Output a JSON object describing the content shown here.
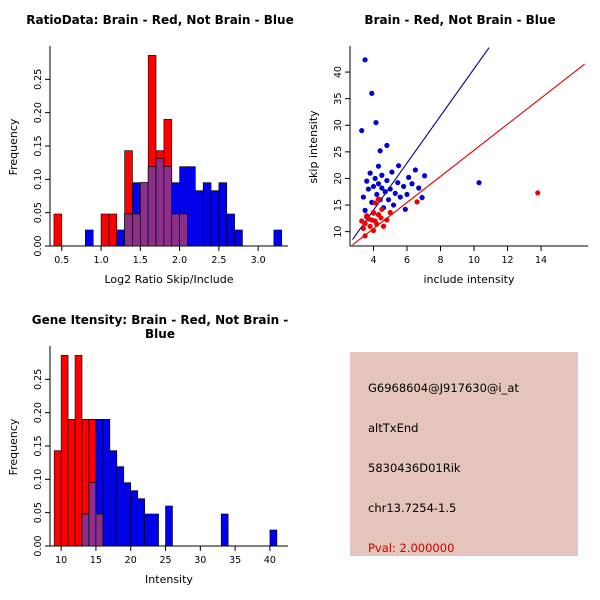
{
  "chart_data": [
    {
      "id": "ratio-histogram",
      "type": "histogram",
      "title": "RatioData: Brain - Red, Not Brain - Blue",
      "xlabel": "Log2 Ratio Skip/Include",
      "ylabel": "Frequency",
      "legend": [
        {
          "name": "Brain",
          "color_key": "red"
        },
        {
          "name": "Not Brain",
          "color_key": "blue"
        }
      ],
      "bin_start": 0.4,
      "bin_width": 0.1,
      "red": [
        0.048,
        0,
        0,
        0,
        0,
        0,
        0.048,
        0.048,
        0,
        0.143,
        0.048,
        0.095,
        0.286,
        0.143,
        0.19,
        0.048,
        0.048,
        0,
        0,
        0,
        0,
        0,
        0,
        0,
        0,
        0,
        0,
        0,
        0
      ],
      "blue": [
        0,
        0,
        0,
        0,
        0.024,
        0,
        0,
        0,
        0.024,
        0.048,
        0.095,
        0.095,
        0.119,
        0.131,
        0.119,
        0.095,
        0.119,
        0.119,
        0.083,
        0.095,
        0.083,
        0.095,
        0.048,
        0.024,
        0,
        0,
        0,
        0,
        0.024
      ],
      "x_range": [
        0.35,
        3.38
      ],
      "y_range": [
        0,
        0.3
      ],
      "x_ticks": [
        0.5,
        1.0,
        1.5,
        2.0,
        2.5,
        3.0
      ],
      "x_tick_labels": [
        "0.5",
        "1.0",
        "1.5",
        "2.0",
        "2.5",
        "3.0"
      ],
      "y_ticks": [
        0,
        0.05,
        0.1,
        0.15,
        0.2,
        0.25
      ],
      "y_tick_labels": [
        "0.00",
        "0.05",
        "0.10",
        "0.15",
        "0.20",
        "0.25"
      ],
      "color_red": "#ff0000",
      "color_blue": "#0000ee",
      "color_overlap": "#8b2f8b"
    },
    {
      "id": "intensity-scatter",
      "type": "scatter",
      "title": "Brain - Red, Not Brain - Blue",
      "xlabel": "include intensity",
      "ylabel": "skip intensity",
      "x_range": [
        2.6,
        16.8
      ],
      "y_range": [
        7.3,
        44.9
      ],
      "x_ticks": [
        4,
        6,
        8,
        10,
        12,
        14
      ],
      "x_tick_labels": [
        "4",
        "6",
        "8",
        "10",
        "12",
        "14"
      ],
      "y_ticks": [
        10,
        15,
        20,
        25,
        30,
        35,
        40
      ],
      "y_tick_labels": [
        "10",
        "15",
        "20",
        "25",
        "30",
        "35",
        "40"
      ],
      "series": [
        {
          "name": "Not Brain",
          "color": "#0000cd",
          "points": [
            [
              3.3,
              29
            ],
            [
              3.5,
              42.3
            ],
            [
              3.9,
              36
            ],
            [
              4.15,
              30.5
            ],
            [
              4.4,
              25.2
            ],
            [
              3.4,
              16.5
            ],
            [
              3.5,
              14
            ],
            [
              3.6,
              19.5
            ],
            [
              3.7,
              18
            ],
            [
              3.8,
              21
            ],
            [
              3.9,
              15.5
            ],
            [
              4.0,
              18.5
            ],
            [
              4.0,
              13.5
            ],
            [
              4.1,
              20
            ],
            [
              4.2,
              17
            ],
            [
              4.3,
              19
            ],
            [
              4.3,
              22.3
            ],
            [
              4.4,
              16
            ],
            [
              4.5,
              18.2
            ],
            [
              4.5,
              20.6
            ],
            [
              4.6,
              14.5
            ],
            [
              4.7,
              17.5
            ],
            [
              4.8,
              19.6
            ],
            [
              4.9,
              16
            ],
            [
              5.0,
              18
            ],
            [
              5.1,
              21.2
            ],
            [
              5.2,
              15
            ],
            [
              5.3,
              17.2
            ],
            [
              5.45,
              19.2
            ],
            [
              5.5,
              22.4
            ],
            [
              5.6,
              16.5
            ],
            [
              5.8,
              18.5
            ],
            [
              6.0,
              17
            ],
            [
              6.1,
              20.2
            ],
            [
              6.3,
              19
            ],
            [
              6.5,
              21.6
            ],
            [
              6.7,
              18.2
            ],
            [
              7.05,
              20.5
            ],
            [
              5.9,
              14.2
            ],
            [
              4.8,
              26.2
            ],
            [
              10.3,
              19.2
            ],
            [
              3.6,
              12.8
            ],
            [
              6.9,
              16.4
            ]
          ]
        },
        {
          "name": "Brain",
          "color": "#ee0000",
          "points": [
            [
              3.3,
              12
            ],
            [
              3.4,
              10.6
            ],
            [
              3.5,
              11.5
            ],
            [
              3.6,
              13
            ],
            [
              3.7,
              12.4
            ],
            [
              3.8,
              11
            ],
            [
              3.9,
              12.2
            ],
            [
              4.0,
              10.2
            ],
            [
              4.0,
              13.6
            ],
            [
              4.1,
              12
            ],
            [
              4.2,
              11.4
            ],
            [
              4.3,
              13.2
            ],
            [
              4.45,
              12.6
            ],
            [
              4.5,
              14.2
            ],
            [
              4.6,
              11
            ],
            [
              4.8,
              12.2
            ],
            [
              5.0,
              13.6
            ],
            [
              3.5,
              9.2
            ],
            [
              4.1,
              15.4
            ],
            [
              4.3,
              16.1
            ],
            [
              6.6,
              15.6
            ],
            [
              13.8,
              17.3
            ]
          ]
        }
      ],
      "lines": [
        {
          "name": "brain-fit-line",
          "color": "#dd0000",
          "x1": 2.75,
          "y1": 7.5,
          "x2": 16.6,
          "y2": 41.5
        },
        {
          "name": "notbrain-fit-line",
          "color": "#00008b",
          "x1": 2.75,
          "y1": 8.5,
          "x2": 10.9,
          "y2": 44.6
        }
      ]
    },
    {
      "id": "gene-intensity-histogram",
      "type": "histogram",
      "title": "Gene Itensity: Brain - Red, Not Brain - Blue",
      "xlabel": "Intensity",
      "ylabel": "Frequency",
      "legend": [
        {
          "name": "Brain",
          "color_key": "red"
        },
        {
          "name": "Not Brain",
          "color_key": "blue"
        }
      ],
      "bin_start": 9,
      "bin_width": 1,
      "red": [
        0.143,
        0.286,
        0.19,
        0.286,
        0.19,
        0.19,
        0.048,
        0,
        0,
        0,
        0,
        0,
        0,
        0,
        0,
        0,
        0,
        0,
        0,
        0,
        0,
        0,
        0,
        0,
        0,
        0,
        0,
        0,
        0,
        0,
        0,
        0,
        0
      ],
      "blue": [
        0,
        0,
        0,
        0,
        0.048,
        0.095,
        0.19,
        0.19,
        0.143,
        0.119,
        0.095,
        0.083,
        0.071,
        0.048,
        0.048,
        0,
        0.06,
        0,
        0,
        0,
        0,
        0,
        0,
        0,
        0.048,
        0,
        0,
        0,
        0,
        0,
        0,
        0.024,
        0
      ],
      "x_range": [
        8.4,
        42.6
      ],
      "y_range": [
        0,
        0.3
      ],
      "x_ticks": [
        10,
        15,
        20,
        25,
        30,
        35,
        40
      ],
      "x_tick_labels": [
        "10",
        "15",
        "20",
        "25",
        "30",
        "35",
        "40"
      ],
      "y_ticks": [
        0,
        0.05,
        0.1,
        0.15,
        0.2,
        0.25
      ],
      "y_tick_labels": [
        "0.00",
        "0.05",
        "0.10",
        "0.15",
        "0.20",
        "0.25"
      ],
      "color_red": "#ff0000",
      "color_blue": "#0000ee",
      "color_overlap": "#8b2f8b"
    }
  ],
  "info_box": {
    "bg_color": "#e4c4bb",
    "lines": [
      "G6968604@J917630@i_at",
      "altTxEnd",
      "5830436D01Rik",
      "chr13.7254-1.5"
    ],
    "pval": "Pval: 2.000000",
    "pval_color": "#cc0000"
  }
}
